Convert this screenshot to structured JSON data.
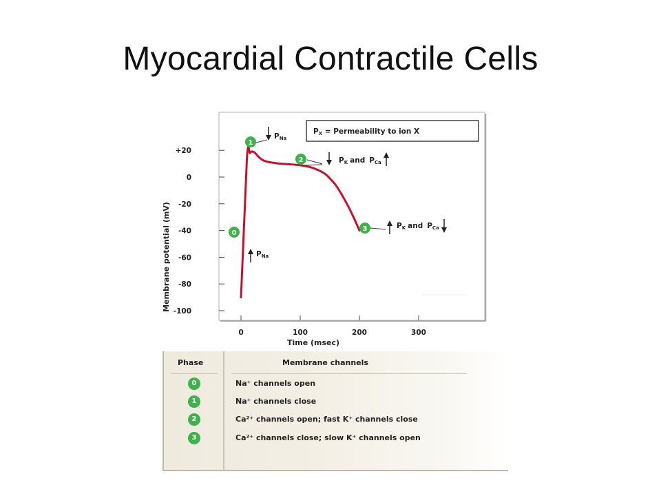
{
  "title": "Myocardial Contractile Cells",
  "chart_data": {
    "type": "line",
    "xlabel": "Time (msec)",
    "ylabel": "Membrane potential (mV)",
    "xlim": [
      -12,
      330
    ],
    "ylim": [
      -103,
      35
    ],
    "x_ticks": [
      "0",
      "100",
      "200",
      "300"
    ],
    "y_ticks": [
      "+20",
      "0",
      "-20",
      "-40",
      "-60",
      "-80",
      "-100"
    ],
    "series": [
      {
        "color": "#c8102e",
        "x": [
          0,
          10,
          15,
          18,
          20,
          24,
          30,
          40,
          60,
          80,
          100,
          120,
          140,
          150,
          160,
          170,
          180,
          190,
          200
        ],
        "y": [
          -90,
          14,
          18,
          19,
          19,
          18,
          15,
          12,
          10.3,
          9.6,
          8.8,
          7,
          3,
          -1,
          -6,
          -13,
          -21,
          -30,
          -40
        ]
      }
    ],
    "legend_box": "P_X = Permeability to ion X",
    "phases": [
      {
        "number": "0",
        "label": "P",
        "sub": "Na",
        "change": "increase"
      },
      {
        "number": "1",
        "label": "P",
        "sub": "Na",
        "change": "decrease"
      },
      {
        "number": "2",
        "label": "P",
        "sub": "K",
        "joiner": "and",
        "label2": "P",
        "sub2": "Ca",
        "change": "K down, Ca up"
      },
      {
        "number": "3",
        "label": "P",
        "sub": "K",
        "joiner": "and",
        "label2": "P",
        "sub2": "Ca",
        "change": "K up, Ca down"
      }
    ],
    "colors": {
      "curve": "#c8102e",
      "badge": "#3db34a"
    }
  },
  "table": {
    "phase_header": "Phase",
    "channels_header": "Membrane channels",
    "rows": [
      {
        "phase": "0",
        "text": "Na⁺ channels open"
      },
      {
        "phase": "1",
        "text": "Na⁺ channels close"
      },
      {
        "phase": "2",
        "text": "Ca²⁺ channels open; fast K⁺ channels close"
      },
      {
        "phase": "3",
        "text": "Ca²⁺ channels close; slow K⁺ channels open"
      }
    ]
  }
}
